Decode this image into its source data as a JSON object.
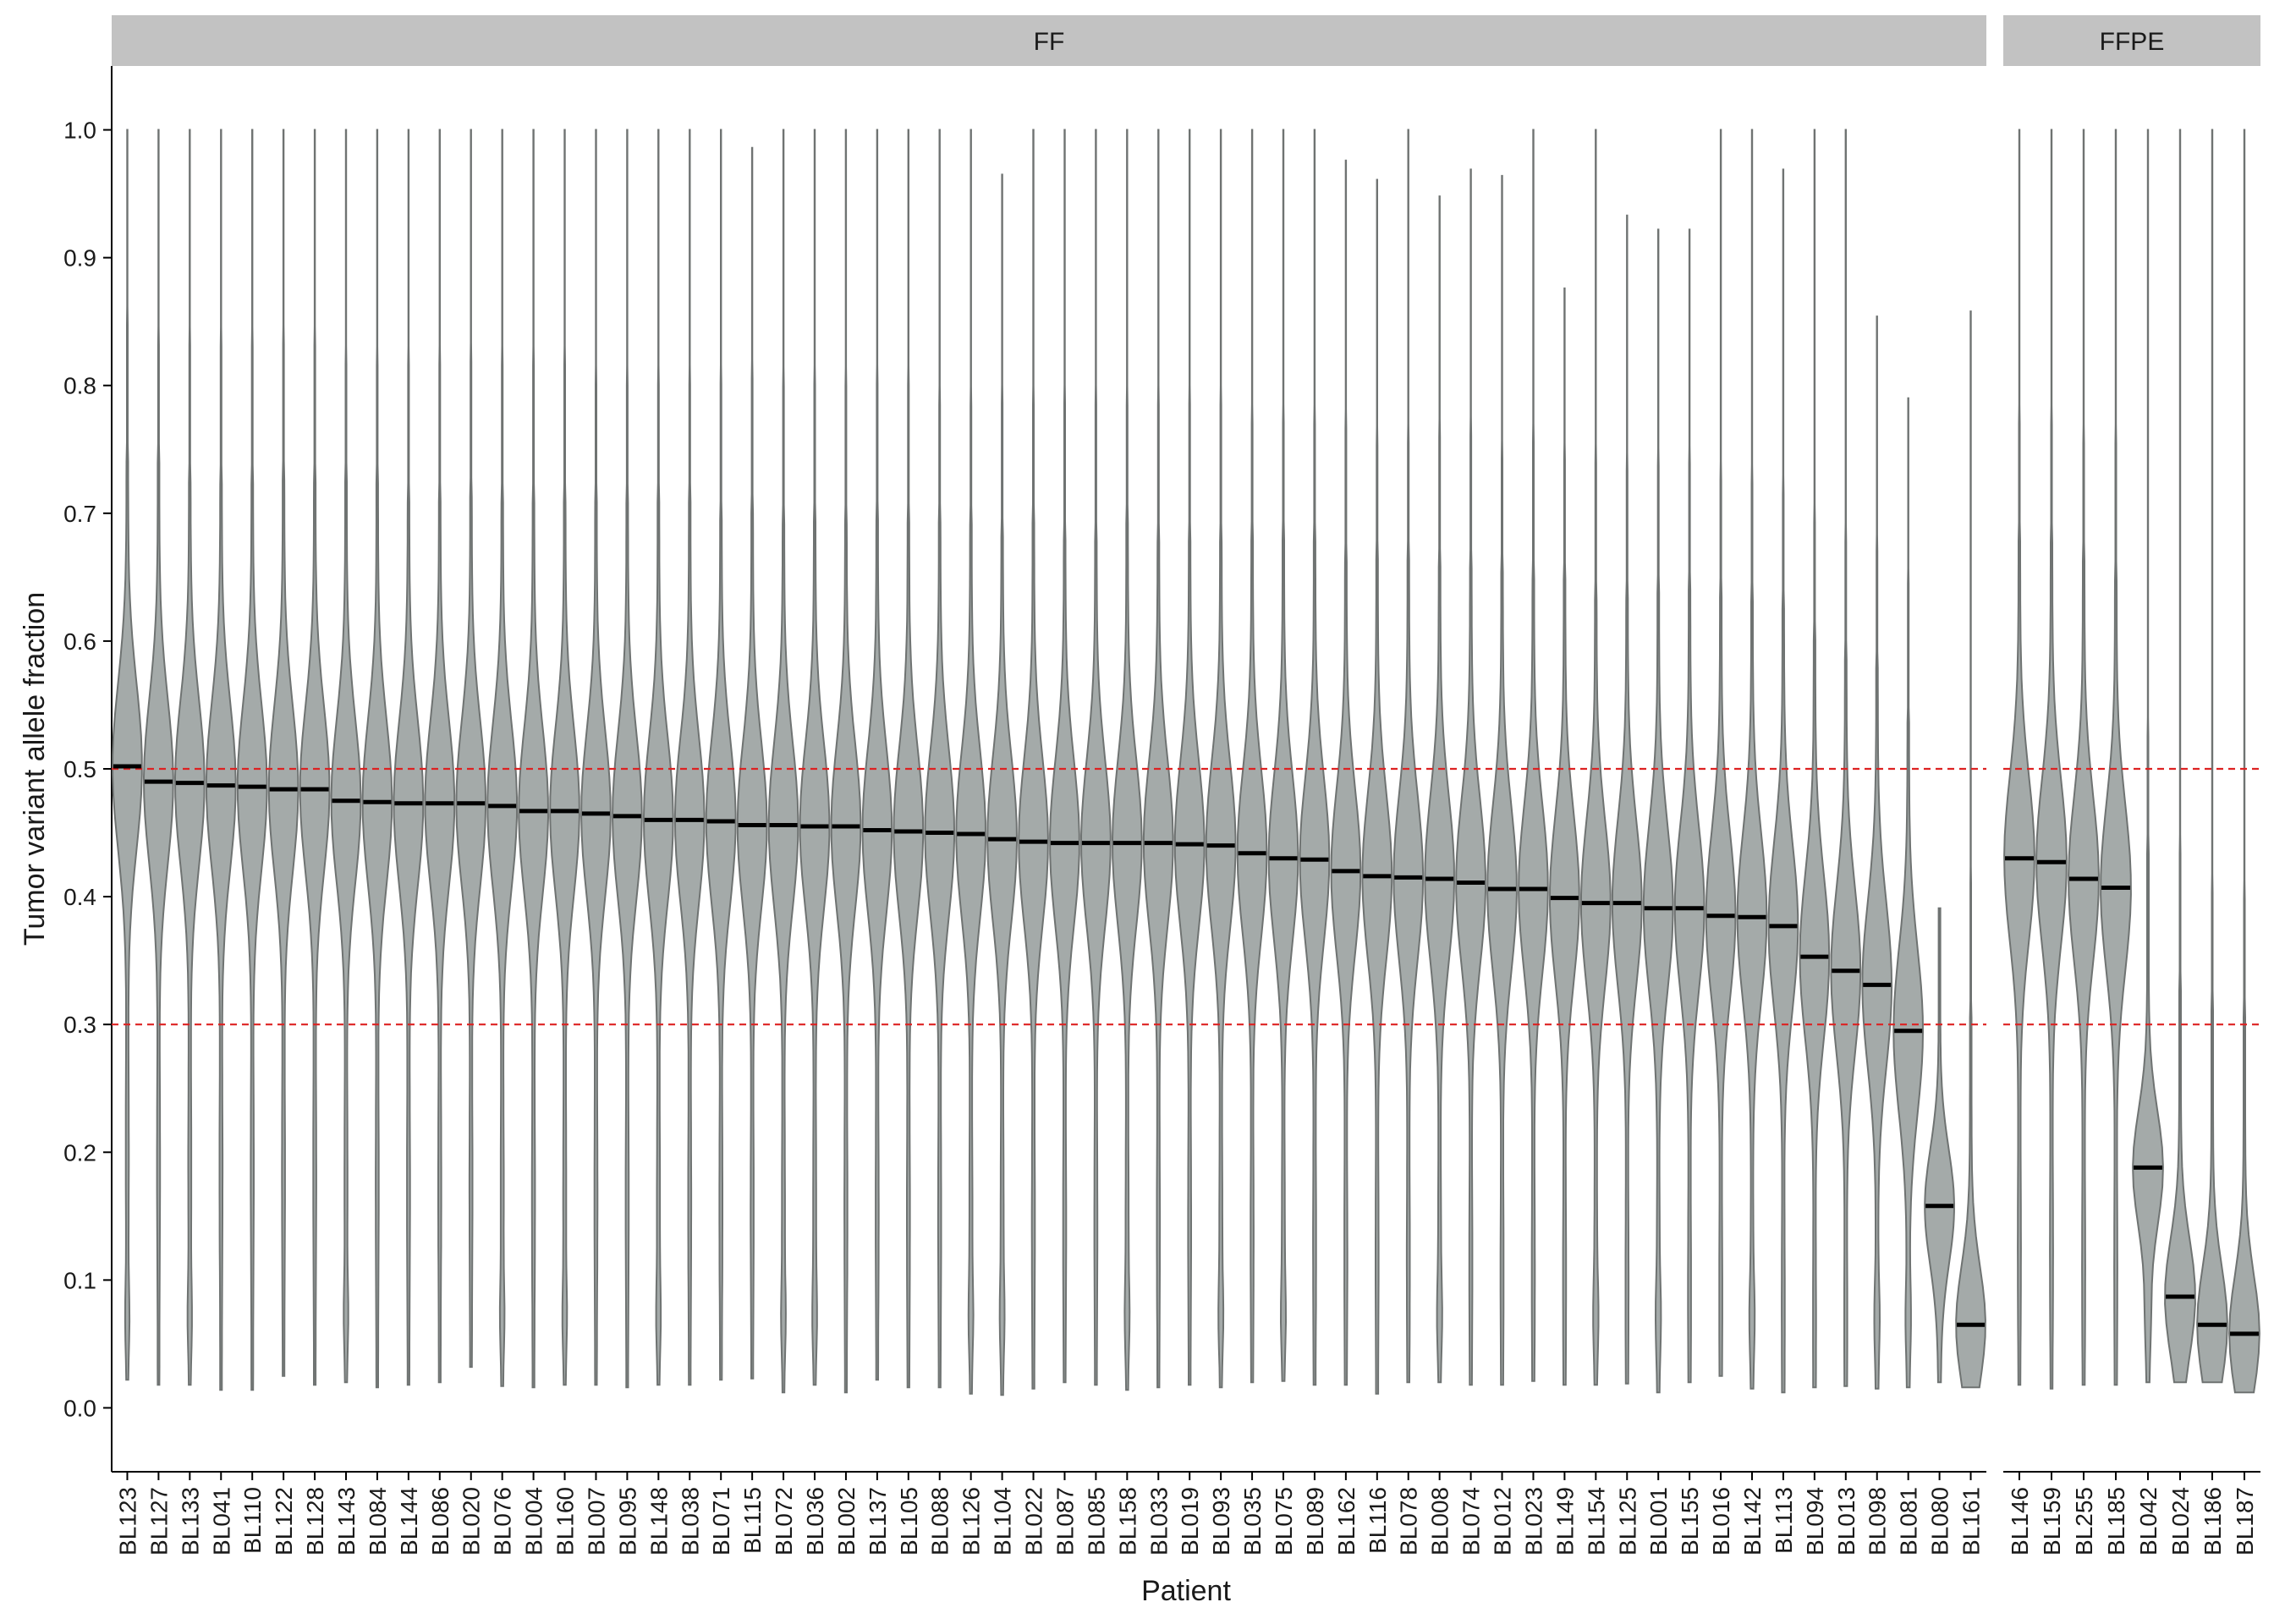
{
  "chart_data": {
    "type": "violin",
    "xlabel": "Patient",
    "ylabel": "Tumor variant allele fraction",
    "ylim": [
      -0.05,
      1.05
    ],
    "yticks": [
      0.0,
      0.1,
      0.2,
      0.3,
      0.4,
      0.5,
      0.6,
      0.7,
      0.8,
      0.9,
      1.0
    ],
    "reference_lines": [
      0.3,
      0.5
    ],
    "colors": {
      "violin_fill": "#a4aaa9",
      "violin_stroke": "#6f7372",
      "median": "#000000",
      "reference_line": "#dd2222",
      "strip": "#c2c2c2"
    },
    "panels": [
      {
        "label": "FF",
        "categories": [
          "BL123",
          "BL127",
          "BL133",
          "BL041",
          "BL110",
          "BL122",
          "BL128",
          "BL143",
          "BL084",
          "BL144",
          "BL086",
          "BL020",
          "BL076",
          "BL004",
          "BL160",
          "BL007",
          "BL095",
          "BL148",
          "BL038",
          "BL071",
          "BL115",
          "BL072",
          "BL036",
          "BL002",
          "BL137",
          "BL105",
          "BL088",
          "BL126",
          "BL104",
          "BL022",
          "BL087",
          "BL085",
          "BL158",
          "BL033",
          "BL019",
          "BL093",
          "BL035",
          "BL075",
          "BL089",
          "BL162",
          "BL116",
          "BL078",
          "BL008",
          "BL074",
          "BL012",
          "BL023",
          "BL149",
          "BL154",
          "BL125",
          "BL001",
          "BL155",
          "BL016",
          "BL142",
          "BL113",
          "BL094",
          "BL013",
          "BL098",
          "BL081",
          "BL080",
          "BL161"
        ],
        "medians": [
          0.502,
          0.49,
          0.489,
          0.487,
          0.486,
          0.484,
          0.484,
          0.475,
          0.474,
          0.473,
          0.473,
          0.473,
          0.471,
          0.467,
          0.467,
          0.465,
          0.463,
          0.46,
          0.46,
          0.459,
          0.456,
          0.456,
          0.455,
          0.455,
          0.452,
          0.451,
          0.45,
          0.449,
          0.445,
          0.443,
          0.442,
          0.442,
          0.442,
          0.442,
          0.441,
          0.44,
          0.434,
          0.43,
          0.429,
          0.42,
          0.416,
          0.415,
          0.414,
          0.411,
          0.406,
          0.406,
          0.399,
          0.395,
          0.395,
          0.391,
          0.391,
          0.385,
          0.384,
          0.377,
          0.353,
          0.342,
          0.331,
          0.295,
          0.158,
          0.065
        ],
        "min": [
          0.022,
          0.018,
          0.018,
          0.014,
          0.014,
          0.025,
          0.018,
          0.02,
          0.016,
          0.018,
          0.02,
          0.032,
          0.017,
          0.016,
          0.018,
          0.018,
          0.016,
          0.018,
          0.018,
          0.022,
          0.023,
          0.012,
          0.018,
          0.012,
          0.022,
          0.016,
          0.016,
          0.011,
          0.01,
          0.015,
          0.02,
          0.018,
          0.014,
          0.016,
          0.018,
          0.016,
          0.02,
          0.021,
          0.018,
          0.018,
          0.011,
          0.02,
          0.02,
          0.018,
          0.018,
          0.021,
          0.018,
          0.018,
          0.019,
          0.012,
          0.02,
          0.025,
          0.015,
          0.012,
          0.016,
          0.017,
          0.015,
          0.016,
          0.02,
          0.016
        ],
        "max": [
          1.0,
          1.0,
          1.0,
          1.0,
          1.0,
          1.0,
          1.0,
          1.0,
          1.0,
          1.0,
          1.0,
          1.0,
          1.0,
          1.0,
          1.0,
          1.0,
          1.0,
          1.0,
          1.0,
          1.0,
          0.986,
          1.0,
          1.0,
          1.0,
          1.0,
          1.0,
          1.0,
          1.0,
          0.965,
          1.0,
          1.0,
          1.0,
          1.0,
          1.0,
          1.0,
          1.0,
          1.0,
          1.0,
          1.0,
          0.976,
          0.961,
          1.0,
          0.948,
          0.969,
          0.964,
          1.0,
          0.876,
          1.0,
          0.933,
          0.922,
          0.922,
          1.0,
          1.0,
          0.969,
          1.0,
          1.0,
          0.854,
          0.79,
          0.391,
          0.858
        ]
      },
      {
        "label": "FFPE",
        "categories": [
          "BL146",
          "BL159",
          "BL255",
          "BL185",
          "BL042",
          "BL024",
          "BL186",
          "BL187"
        ],
        "medians": [
          0.43,
          0.427,
          0.414,
          0.407,
          0.188,
          0.087,
          0.065,
          0.058
        ],
        "min": [
          0.018,
          0.015,
          0.018,
          0.018,
          0.02,
          0.02,
          0.02,
          0.012
        ],
        "max": [
          1.0,
          1.0,
          1.0,
          1.0,
          1.0,
          1.0,
          1.0,
          1.0
        ]
      }
    ]
  }
}
